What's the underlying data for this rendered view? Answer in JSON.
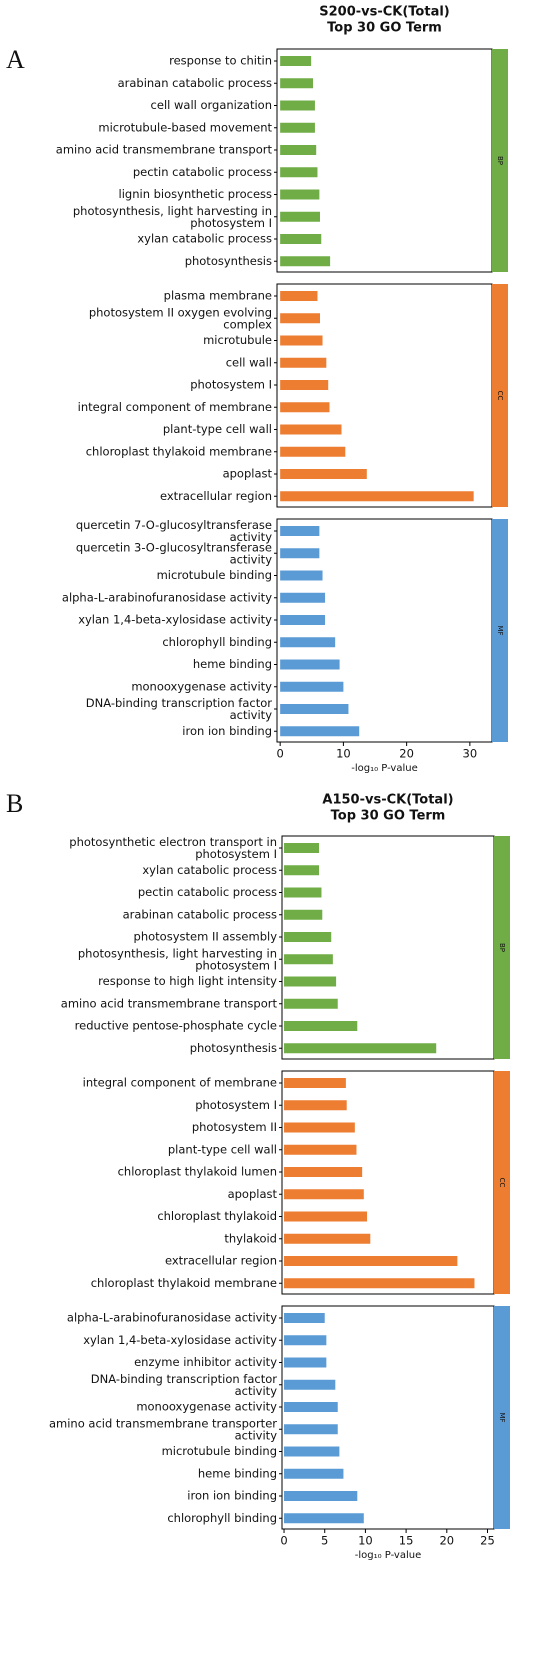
{
  "chart_data": [
    {
      "type": "barh",
      "panel_label": "A",
      "title": "S200-vs-CK(Total)",
      "subtitle": "Top 30 GO Term",
      "xlabel": "-log₁₀ P-value",
      "xlim": [
        -0.5,
        33.5
      ],
      "xticks": [
        0,
        10,
        20,
        30
      ],
      "groups": [
        {
          "name": "BP",
          "color": "#70ad47",
          "categories": [
            "response to chitin",
            "arabinan catabolic process",
            "cell wall organization",
            "microtubule-based movement",
            "amino acid transmembrane transport",
            "pectin catabolic process",
            "lignin biosynthetic process",
            "photosynthesis, light harvesting in photosystem I",
            "xylan catabolic process",
            "photosynthesis"
          ],
          "values": [
            4.9,
            5.2,
            5.5,
            5.5,
            5.7,
            5.9,
            6.2,
            6.3,
            6.5,
            7.9
          ]
        },
        {
          "name": "CC",
          "color": "#ed7d31",
          "categories": [
            "plasma membrane",
            "photosystem II oxygen evolving complex",
            "microtubule",
            "cell wall",
            "photosystem I",
            "integral component of membrane",
            "plant-type cell wall",
            "chloroplast thylakoid membrane",
            "apoplast",
            "extracellular region"
          ],
          "values": [
            5.9,
            6.3,
            6.7,
            7.3,
            7.6,
            7.8,
            9.7,
            10.3,
            13.7,
            30.6
          ]
        },
        {
          "name": "MF",
          "color": "#5b9bd5",
          "categories": [
            "quercetin 7-O-glucosyltransferase activity",
            "quercetin 3-O-glucosyltransferase activity",
            "microtubule binding",
            "alpha-L-arabinofuranosidase activity",
            "xylan 1,4-beta-xylosidase activity",
            "chlorophyll binding",
            "heme binding",
            "monooxygenase activity",
            "DNA-binding transcription factor activity",
            "iron ion binding"
          ],
          "values": [
            6.2,
            6.2,
            6.7,
            7.1,
            7.1,
            8.7,
            9.4,
            10.0,
            10.8,
            12.5
          ]
        }
      ]
    },
    {
      "type": "barh",
      "panel_label": "B",
      "title": "A150-vs-CK(Total)",
      "subtitle": "Top 30 GO Term",
      "xlabel": "-log₁₀ P-value",
      "xlim": [
        -0.25,
        25.8
      ],
      "xticks": [
        0,
        5,
        10,
        15,
        20,
        25
      ],
      "groups": [
        {
          "name": "BP",
          "color": "#70ad47",
          "categories": [
            "photosynthetic electron transport in photosystem I",
            "xylan catabolic process",
            "pectin catabolic process",
            "arabinan catabolic process",
            "photosystem II assembly",
            "photosynthesis, light harvesting in photosystem I",
            "response to high light intensity",
            "amino acid transmembrane transport",
            "reductive pentose-phosphate cycle",
            "photosynthesis"
          ],
          "values": [
            4.3,
            4.3,
            4.6,
            4.7,
            5.8,
            6.0,
            6.4,
            6.6,
            9.0,
            18.7
          ]
        },
        {
          "name": "CC",
          "color": "#ed7d31",
          "categories": [
            "integral component of membrane",
            "photosystem I",
            "photosystem II",
            "plant-type cell wall",
            "chloroplast thylakoid lumen",
            "apoplast",
            "chloroplast thylakoid",
            "thylakoid",
            "extracellular region",
            "chloroplast thylakoid membrane"
          ],
          "values": [
            7.6,
            7.7,
            8.7,
            8.9,
            9.6,
            9.8,
            10.2,
            10.6,
            21.3,
            23.4
          ]
        },
        {
          "name": "MF",
          "color": "#5b9bd5",
          "categories": [
            "alpha-L-arabinofuranosidase activity",
            "xylan 1,4-beta-xylosidase activity",
            "enzyme inhibitor activity",
            "DNA-binding transcription factor activity",
            "monooxygenase activity",
            "amino acid transmembrane transporter activity",
            "microtubule binding",
            "heme binding",
            "iron ion binding",
            "chlorophyll binding"
          ],
          "values": [
            5.0,
            5.2,
            5.2,
            6.3,
            6.6,
            6.6,
            6.8,
            7.3,
            9.0,
            9.8
          ]
        }
      ]
    }
  ]
}
